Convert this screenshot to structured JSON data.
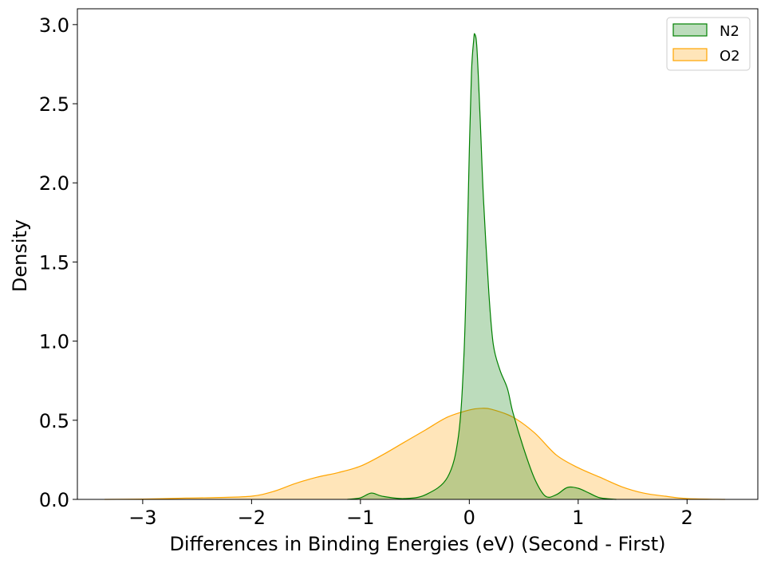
{
  "chart_data": {
    "type": "area",
    "title": "",
    "xlabel": "Differences in Binding Energies (eV) (Second - First)",
    "ylabel": "Density",
    "xlim": [
      -3.6,
      2.65
    ],
    "ylim": [
      0,
      3.1
    ],
    "x_ticks": [
      -3,
      -2,
      -1,
      0,
      1,
      2
    ],
    "x_tick_labels": [
      "−3",
      "−2",
      "−1",
      "0",
      "1",
      "2"
    ],
    "y_ticks": [
      0,
      0.5,
      1.0,
      1.5,
      2.0,
      2.5,
      3.0
    ],
    "y_tick_labels": [
      "0.0",
      "0.5",
      "1.0",
      "1.5",
      "2.0",
      "2.5",
      "3.0"
    ],
    "grid": false,
    "legend_position": "top-right",
    "series": [
      {
        "name": "O2",
        "line_color": "#FFA500",
        "fill_color": "#FFE4B5",
        "points": [
          [
            -3.35,
            0.0
          ],
          [
            -3.0,
            0.002
          ],
          [
            -2.6,
            0.008
          ],
          [
            -2.3,
            0.012
          ],
          [
            -2.0,
            0.02
          ],
          [
            -1.8,
            0.05
          ],
          [
            -1.6,
            0.1
          ],
          [
            -1.4,
            0.14
          ],
          [
            -1.2,
            0.17
          ],
          [
            -1.0,
            0.21
          ],
          [
            -0.8,
            0.28
          ],
          [
            -0.6,
            0.36
          ],
          [
            -0.4,
            0.44
          ],
          [
            -0.2,
            0.52
          ],
          [
            0.0,
            0.565
          ],
          [
            0.1,
            0.575
          ],
          [
            0.2,
            0.57
          ],
          [
            0.4,
            0.52
          ],
          [
            0.6,
            0.42
          ],
          [
            0.8,
            0.28
          ],
          [
            1.0,
            0.2
          ],
          [
            1.2,
            0.14
          ],
          [
            1.4,
            0.08
          ],
          [
            1.6,
            0.04
          ],
          [
            1.8,
            0.02
          ],
          [
            2.0,
            0.005
          ],
          [
            2.35,
            0.0
          ]
        ]
      },
      {
        "name": "N2",
        "line_color": "#008000",
        "fill_color": "#228B22",
        "points": [
          [
            -1.12,
            0.0
          ],
          [
            -1.0,
            0.01
          ],
          [
            -0.9,
            0.04
          ],
          [
            -0.8,
            0.02
          ],
          [
            -0.6,
            0.005
          ],
          [
            -0.4,
            0.03
          ],
          [
            -0.2,
            0.14
          ],
          [
            -0.1,
            0.4
          ],
          [
            -0.05,
            0.9
          ],
          [
            -0.02,
            1.6
          ],
          [
            0.0,
            2.2
          ],
          [
            0.02,
            2.7
          ],
          [
            0.04,
            2.9
          ],
          [
            0.05,
            2.94
          ],
          [
            0.07,
            2.85
          ],
          [
            0.1,
            2.4
          ],
          [
            0.13,
            1.9
          ],
          [
            0.18,
            1.3
          ],
          [
            0.22,
            0.98
          ],
          [
            0.28,
            0.82
          ],
          [
            0.35,
            0.7
          ],
          [
            0.4,
            0.55
          ],
          [
            0.5,
            0.32
          ],
          [
            0.6,
            0.13
          ],
          [
            0.7,
            0.02
          ],
          [
            0.8,
            0.03
          ],
          [
            0.9,
            0.075
          ],
          [
            1.0,
            0.07
          ],
          [
            1.1,
            0.04
          ],
          [
            1.2,
            0.01
          ],
          [
            1.35,
            0.0
          ]
        ]
      }
    ]
  }
}
